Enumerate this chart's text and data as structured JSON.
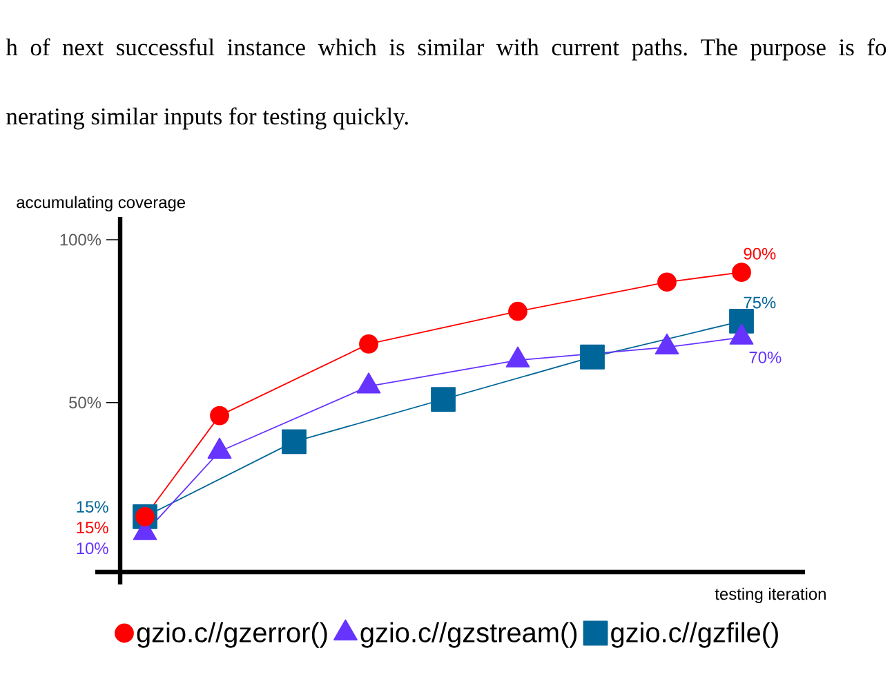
{
  "chart_data": {
    "type": "line",
    "annotations": [
      "h of next successful instance which is similar with current paths. The purpose is fo",
      "nerating similar inputs for testing quickly."
    ],
    "xlabel": "testing iteration",
    "ylabel": "accumulating coverage",
    "categories": [
      null,
      null,
      null,
      null,
      null,
      null,
      null,
      null,
      null
    ],
    "ylim": [
      -2,
      107
    ],
    "yticks": [
      {
        "value": 50,
        "label": "50%"
      },
      {
        "value": 100,
        "label": "100%"
      }
    ],
    "tick_labels": "y",
    "legend": "bottom",
    "series": [
      {
        "name": "gzio.c//gzerror()",
        "color": "#ff0000",
        "marker": "circle",
        "values": [
          15,
          46,
          null,
          68,
          null,
          78,
          null,
          87,
          90
        ],
        "value_labels": [
          "15%",
          null,
          null,
          null,
          null,
          null,
          null,
          null,
          "90%"
        ]
      },
      {
        "name": "gzio.c//gzstream()",
        "color": "#6633ff",
        "marker": "triangle",
        "values": [
          10,
          35,
          null,
          55,
          null,
          63,
          null,
          67,
          70
        ],
        "value_labels": [
          "10%",
          null,
          null,
          null,
          null,
          null,
          null,
          null,
          "70%"
        ]
      },
      {
        "name": "gzio.c//gzfile()",
        "color": "#006699",
        "marker": "square",
        "values": [
          15,
          null,
          38,
          null,
          51,
          null,
          64,
          null,
          75
        ],
        "value_labels": [
          "15%",
          null,
          null,
          null,
          null,
          null,
          null,
          null,
          "75%"
        ]
      }
    ]
  }
}
